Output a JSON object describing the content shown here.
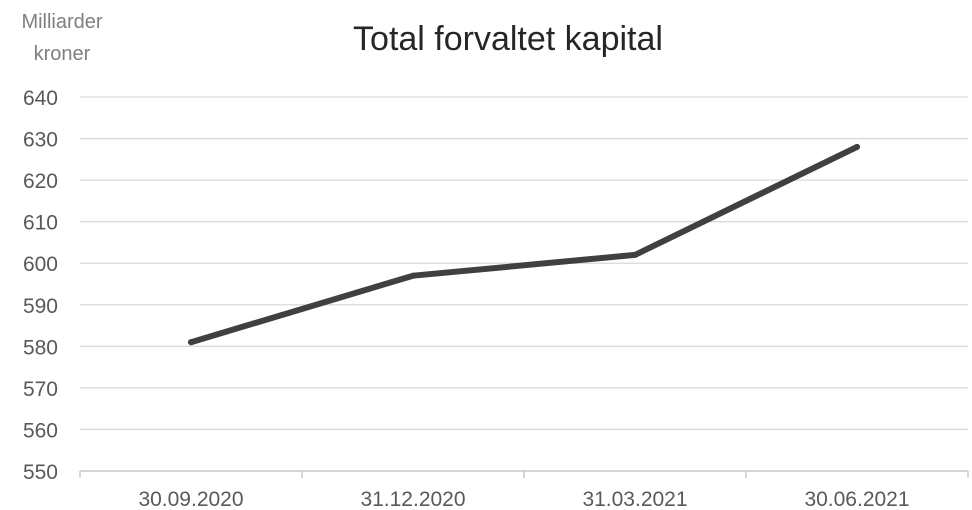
{
  "chart_data": {
    "type": "line",
    "title": "Total forvaltet kapital",
    "ylabel_lines": [
      "Milliarder",
      "kroner"
    ],
    "xlabel": "",
    "categories": [
      "30.09.2020",
      "31.12.2020",
      "31.03.2021",
      "30.06.2021"
    ],
    "series": [
      {
        "values": [
          581,
          597,
          602,
          628
        ]
      }
    ],
    "ylim": [
      550,
      640
    ],
    "yticks": [
      550,
      560,
      570,
      580,
      590,
      600,
      610,
      620,
      630,
      640
    ],
    "grid": true,
    "legend": "none",
    "colors": {
      "line": "#404040",
      "grid": "#d9d9d9",
      "axis": "#bfbfbf",
      "tick_text": "#595959",
      "unit_text": "#7f7f7f",
      "title_text": "#262626"
    }
  }
}
